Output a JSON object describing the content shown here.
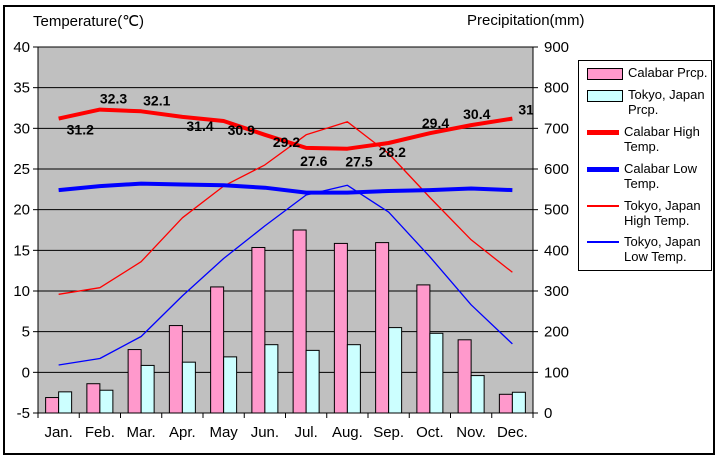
{
  "legend": {
    "items": [
      {
        "label": "Calabar Prcp.",
        "swatch": "bar",
        "color": "#FF99CC"
      },
      {
        "label": "Tokyo, Japan Prcp.",
        "swatch": "bar",
        "color": "#CCFFFF"
      },
      {
        "label": "Calabar High Temp.",
        "swatch": "line",
        "thickness": "thick",
        "color": "#FF0000"
      },
      {
        "label": "Calabar Low Temp.",
        "swatch": "line",
        "thickness": "thick",
        "color": "#0000FF"
      },
      {
        "label": "Tokyo, Japan High Temp.",
        "swatch": "line",
        "thickness": "thin",
        "color": "#FF0000"
      },
      {
        "label": "Tokyo, Japan Low Temp.",
        "swatch": "line",
        "thickness": "thin",
        "color": "#0000FF"
      }
    ]
  },
  "chart_data": {
    "type": "combo",
    "title": "",
    "xlabel": "",
    "legend_position": "right",
    "grid": "horizontal",
    "plot_bg": "#C0C0C0",
    "gridline_color": "#000000",
    "months": [
      "Jan.",
      "Feb.",
      "Mar.",
      "Apr.",
      "May",
      "Jun.",
      "Jul.",
      "Aug.",
      "Sep.",
      "Oct.",
      "Nov.",
      "Dec."
    ],
    "temp_axis": {
      "title": "Temperature(℃)",
      "min": -5,
      "max": 40,
      "step": 5,
      "ticks": [
        40,
        35,
        30,
        25,
        20,
        15,
        10,
        5,
        0,
        -5
      ]
    },
    "precip_axis": {
      "title": "Precipitation(mm)",
      "min": 0,
      "max": 900,
      "step": 100,
      "ticks": [
        900,
        800,
        700,
        600,
        500,
        400,
        300,
        200,
        100,
        0
      ]
    },
    "series": [
      {
        "name": "Calabar Prcp.",
        "type": "bar",
        "axis": "precip",
        "color": "#FF99CC",
        "values": [
          38,
          72,
          156,
          215,
          310,
          407,
          450,
          417,
          419,
          315,
          180,
          46
        ]
      },
      {
        "name": "Tokyo, Japan Prcp.",
        "type": "bar",
        "axis": "precip",
        "color": "#CCFFFF",
        "values": [
          52,
          56,
          117,
          125,
          138,
          168,
          154,
          168,
          210,
          196,
          92,
          51
        ]
      },
      {
        "name": "Calabar High Temp.",
        "type": "line",
        "axis": "temp",
        "color": "#FF0000",
        "width": "thick",
        "values": [
          31.2,
          32.3,
          32.1,
          31.4,
          30.9,
          29.2,
          27.6,
          27.5,
          28.2,
          29.4,
          30.4,
          31.2
        ],
        "labels": [
          "31.2",
          "32.3",
          "32.1",
          "31.4",
          "30.9",
          "29.2",
          "27.6",
          "27.5",
          "28.2",
          "29.4",
          "30.4",
          "31"
        ]
      },
      {
        "name": "Calabar Low Temp.",
        "type": "line",
        "axis": "temp",
        "color": "#0000FF",
        "width": "thick",
        "values": [
          22.4,
          22.9,
          23.2,
          23.1,
          23.0,
          22.7,
          22.1,
          22.1,
          22.3,
          22.4,
          22.6,
          22.4
        ]
      },
      {
        "name": "Tokyo, Japan High Temp.",
        "type": "line",
        "axis": "temp",
        "color": "#FF0000",
        "width": "thin",
        "values": [
          9.6,
          10.4,
          13.6,
          19.0,
          22.9,
          25.5,
          29.2,
          30.8,
          26.9,
          21.5,
          16.3,
          12.3
        ]
      },
      {
        "name": "Tokyo, Japan Low Temp.",
        "type": "line",
        "axis": "temp",
        "color": "#0000FF",
        "width": "thin",
        "values": [
          0.9,
          1.7,
          4.4,
          9.4,
          14.0,
          18.0,
          21.8,
          23.0,
          19.7,
          14.2,
          8.3,
          3.5
        ]
      }
    ]
  }
}
